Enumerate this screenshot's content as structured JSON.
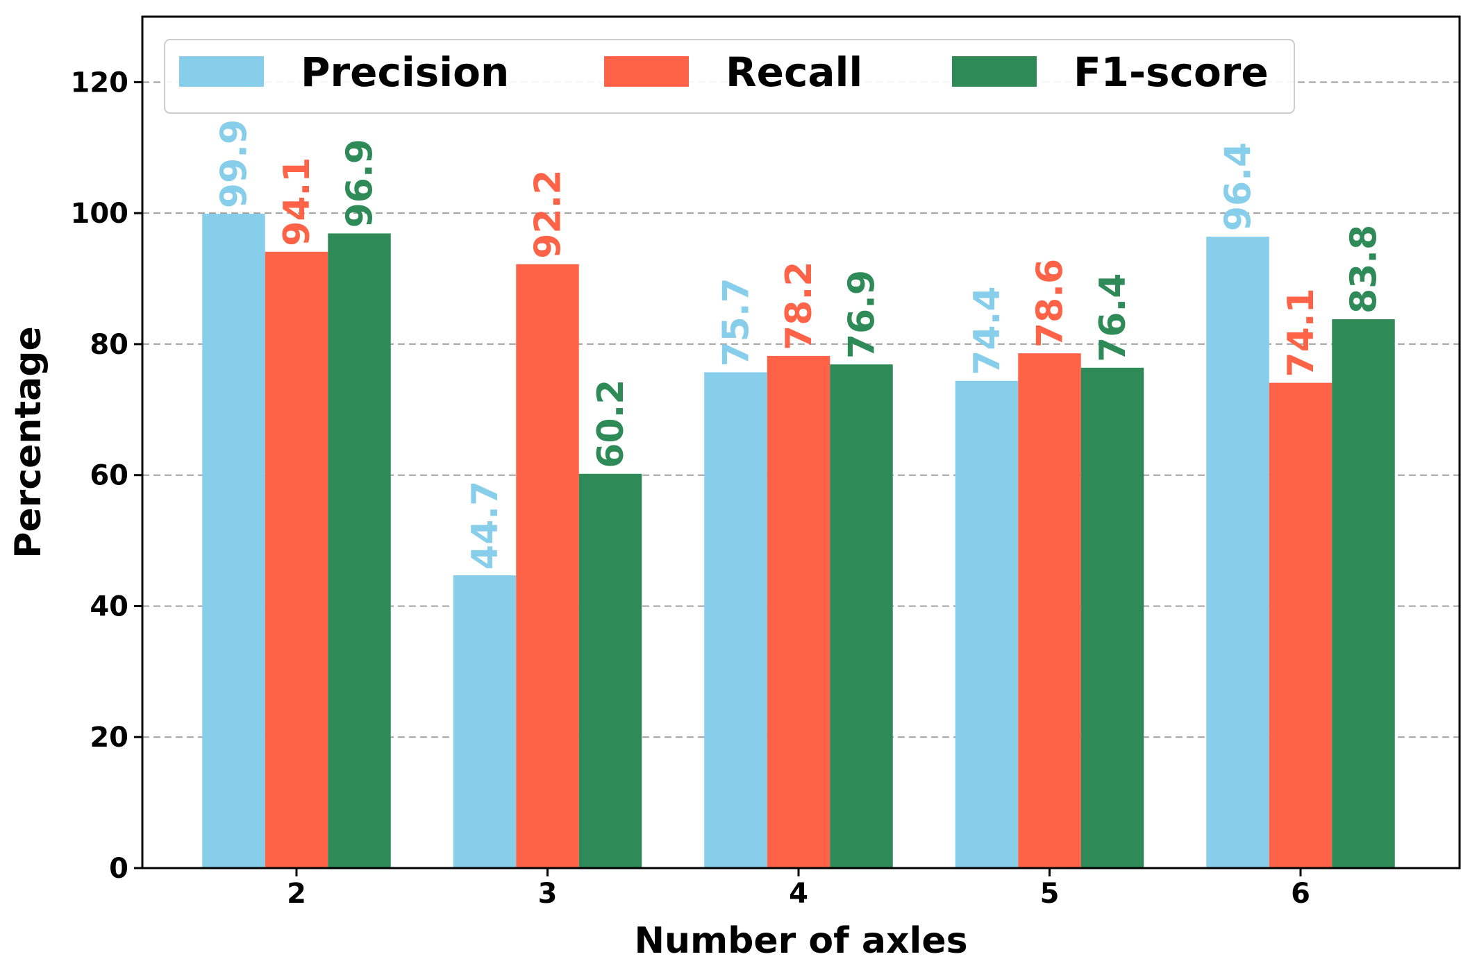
{
  "chart_data": {
    "type": "bar",
    "title": "",
    "xlabel": "Number of axles",
    "ylabel": "Percentage",
    "categories": [
      "2",
      "3",
      "4",
      "5",
      "6"
    ],
    "ylim": [
      0,
      130
    ],
    "yticks": [
      0,
      20,
      40,
      60,
      80,
      100,
      120
    ],
    "grid": "horizontal dashed",
    "legend_position": "top",
    "series": [
      {
        "name": "Precision",
        "color": "#87CEEB",
        "values": [
          99.9,
          44.7,
          75.7,
          74.4,
          96.4
        ],
        "labels": [
          "99.9",
          "44.7",
          "75.7",
          "74.4",
          "96.4"
        ]
      },
      {
        "name": "Recall",
        "color": "#FF6347",
        "values": [
          94.1,
          92.2,
          78.2,
          78.6,
          74.1
        ],
        "labels": [
          "94.1",
          "92.2",
          "78.2",
          "78.6",
          "74.1"
        ]
      },
      {
        "name": "F1-score",
        "color": "#2E8B57",
        "values": [
          96.9,
          60.2,
          76.9,
          76.4,
          83.8
        ],
        "labels": [
          "96.9",
          "60.2",
          "76.9",
          "76.4",
          "83.8"
        ]
      }
    ]
  }
}
